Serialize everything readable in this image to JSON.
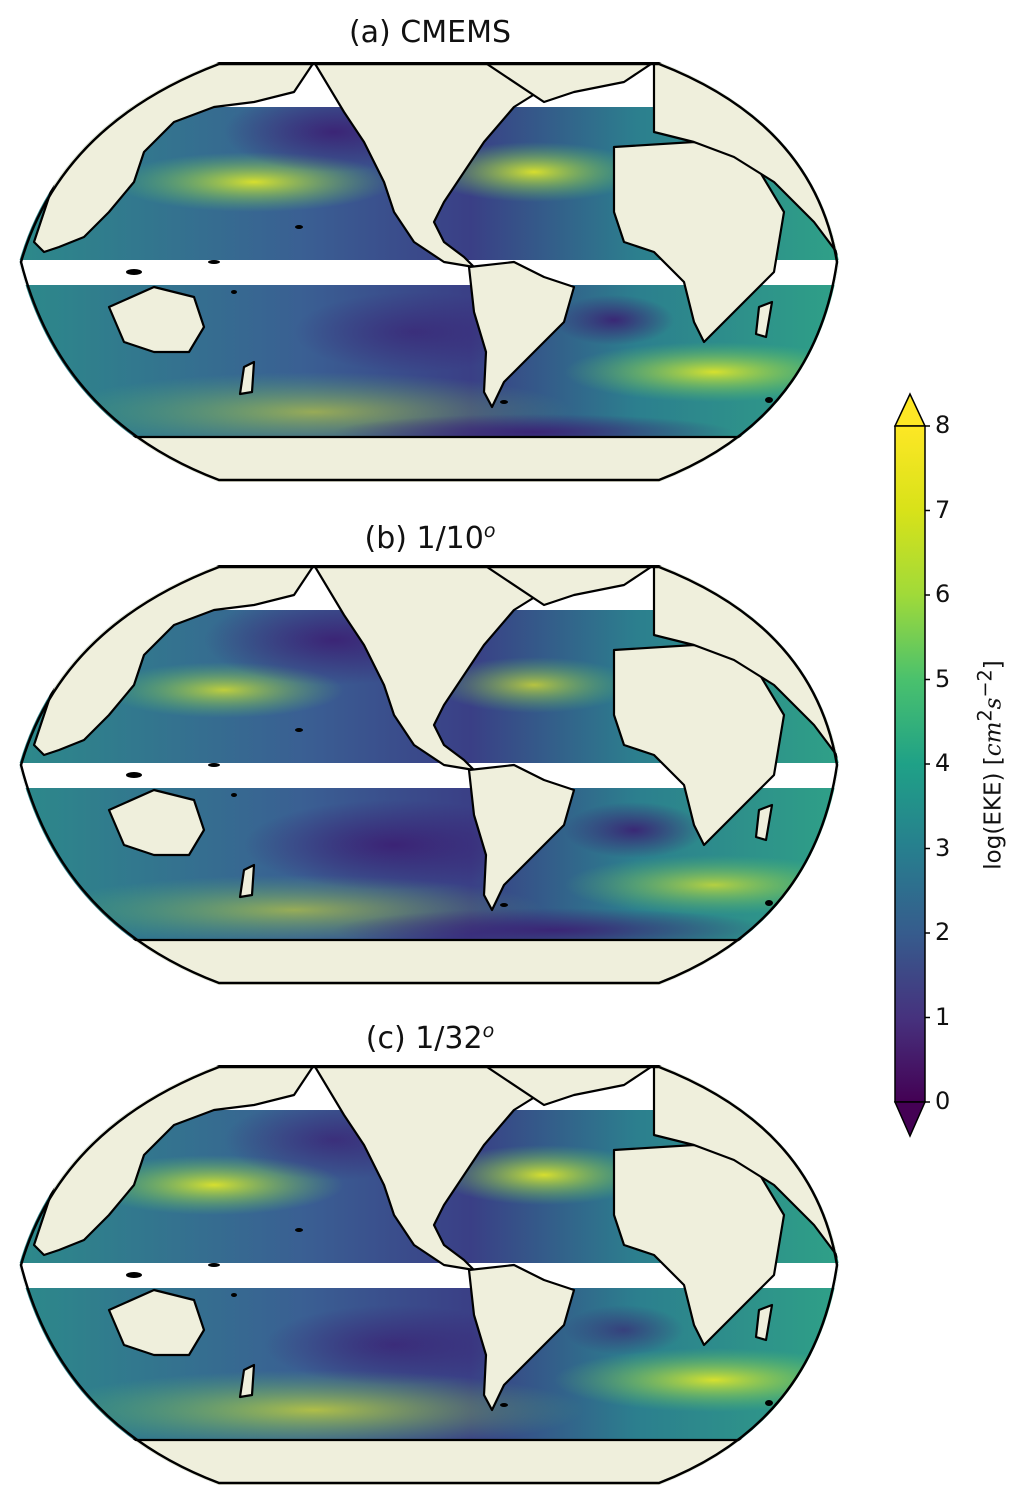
{
  "panels": [
    {
      "id": "a",
      "title": "(a) CMEMS",
      "sup": ""
    },
    {
      "id": "b",
      "title": "(b) 1/10",
      "sup": "o"
    },
    {
      "id": "c",
      "title": "(c) 1/32",
      "sup": "o"
    }
  ],
  "colorbar": {
    "label_prefix": "log(EKE) [",
    "label_unit_cm": "cm",
    "label_unit_cm_exp": "2",
    "label_unit_s": "s",
    "label_unit_s_exp": "−2",
    "label_suffix": "]",
    "ticks": [
      "0",
      "1",
      "2",
      "3",
      "4",
      "5",
      "6",
      "7",
      "8"
    ],
    "min": 0,
    "max": 8,
    "extend": "both",
    "colormap": "viridis"
  },
  "colors": {
    "land": "#efefdc",
    "ocean_low": "#3b2f7e",
    "ocean_mid": "#2f8e8c",
    "ocean_high": "#c6e12a",
    "gap": "#ffffff",
    "outline": "#000000"
  }
}
